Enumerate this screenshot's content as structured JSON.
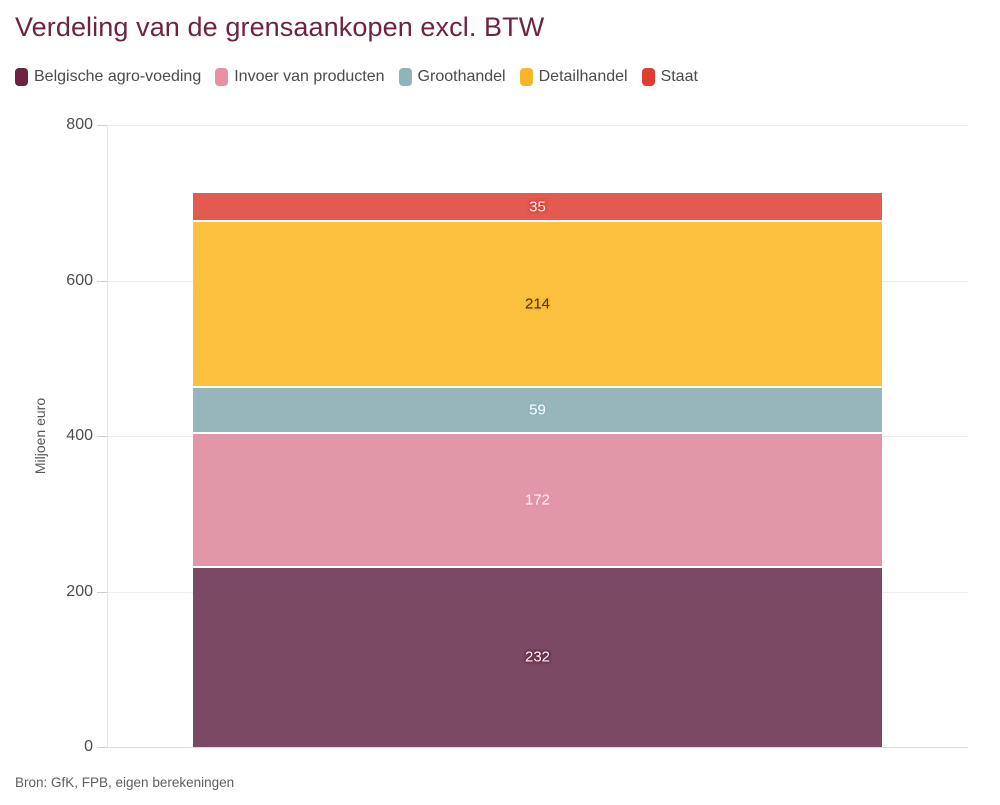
{
  "chart_data": {
    "type": "bar",
    "stacked": true,
    "orientation": "vertical",
    "title": "Verdeling van de grensaankopen excl. BTW",
    "ylabel": "Miljoen euro",
    "ylim": [
      0,
      800
    ],
    "yticks": [
      0,
      200,
      400,
      600,
      800
    ],
    "grid": "horizontal",
    "legend_position": "top",
    "categories": [
      ""
    ],
    "series": [
      {
        "name": "Belgische agro-voeding",
        "values": [
          232
        ],
        "color": "#6A2340",
        "bar_color": "#7B4963",
        "label_color": "#ffffff"
      },
      {
        "name": "Invoer van producten",
        "values": [
          172
        ],
        "color": "#E891A5",
        "bar_color": "#E297A8",
        "label_color": "#ffffff"
      },
      {
        "name": "Groothandel",
        "values": [
          59
        ],
        "color": "#8FB5BA",
        "bar_color": "#96B6BB",
        "label_color": "#ffffff"
      },
      {
        "name": "Detailhandel",
        "values": [
          214
        ],
        "color": "#F8B62D",
        "bar_color": "#FBC13E",
        "label_color": "#333333"
      },
      {
        "name": "Staat",
        "values": [
          35
        ],
        "color": "#E23B32",
        "bar_color": "#E25A50",
        "label_color": "#ffffff"
      }
    ],
    "total": 712,
    "source": "Bron: GfK, FPB, eigen berekeningen",
    "title_color": "#6E2344"
  }
}
